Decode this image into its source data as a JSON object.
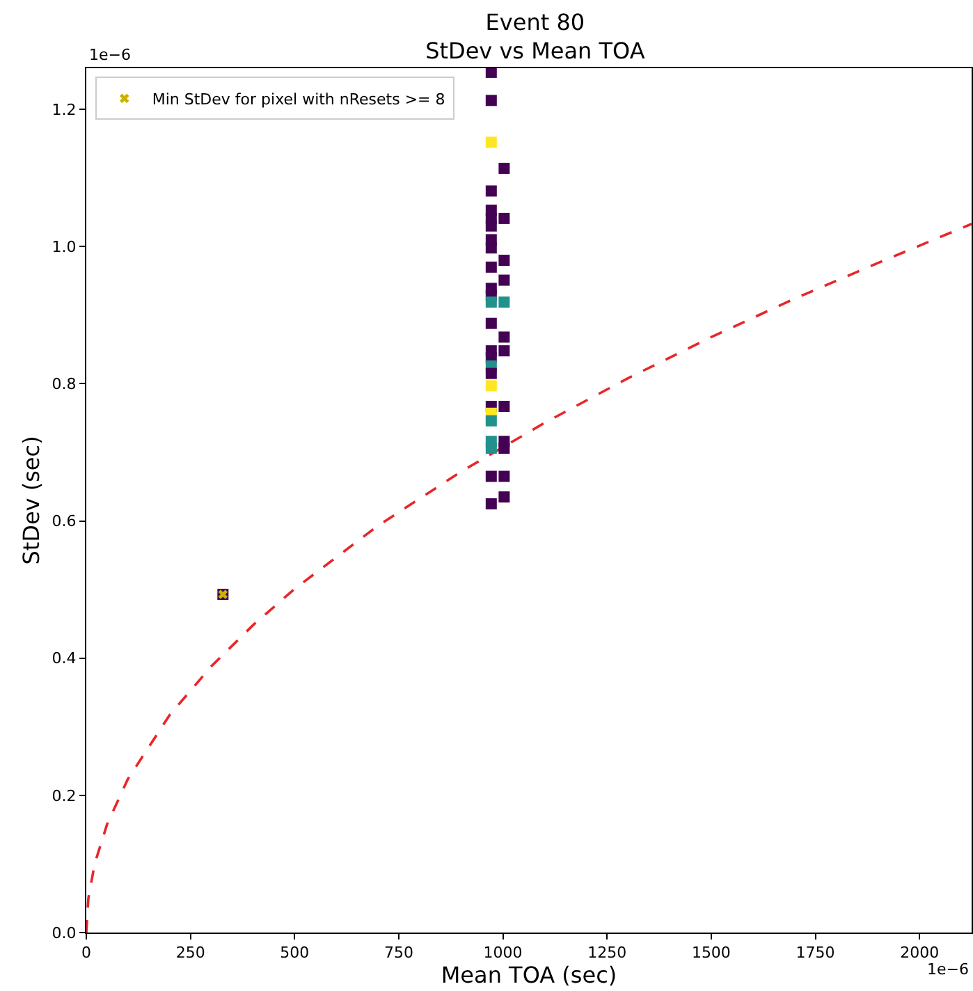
{
  "chart_data": {
    "type": "scatter",
    "title": "Event 80",
    "subtitle": "StDev vs Mean TOA",
    "xlabel": "Mean TOA (sec)",
    "ylabel": "StDev (sec)",
    "annotations": [
      "1e−6",
      "1e−6"
    ],
    "xlim": [
      0,
      2125
    ],
    "xticks": [
      0,
      250,
      500,
      750,
      1000,
      1250,
      1500,
      1750,
      2000
    ],
    "ylim": [
      0,
      1.26
    ],
    "yticks": [
      {
        "value": 0,
        "label": "0.0"
      },
      {
        "value": 0.2,
        "label": "0.2"
      },
      {
        "value": 0.4,
        "label": "0.4"
      },
      {
        "value": 0.6,
        "label": "0.6"
      },
      {
        "value": 0.8,
        "label": "0.8"
      },
      {
        "value": 1,
        "label": "1.0"
      },
      {
        "value": 1.2,
        "label": "1.2"
      }
    ],
    "grid": false,
    "legend": "top left",
    "series": [
      {
        "type": "line",
        "color": "#e8262a",
        "line_style": "dashed",
        "marker": "none",
        "x": [
          0,
          5,
          20,
          50,
          100,
          200,
          300,
          400,
          500,
          700,
          900,
          1100,
          1300,
          1500,
          1700,
          1900,
          2125
        ],
        "values": [
          0,
          0.05,
          0.1,
          0.158,
          0.224,
          0.317,
          0.388,
          0.448,
          0.501,
          0.593,
          0.672,
          0.743,
          0.808,
          0.868,
          0.924,
          0.976,
          1.033
        ]
      },
      {
        "marker": "square",
        "x": [
          328,
          972,
          972,
          972,
          1003,
          972,
          972,
          972,
          1003,
          972,
          972,
          972,
          1003,
          972,
          1003,
          972,
          972,
          972,
          1003,
          972,
          1003,
          972,
          1003,
          972,
          972,
          972,
          972,
          972,
          1003,
          972,
          972,
          972,
          1003,
          972,
          1003,
          972,
          1003,
          1003,
          972
        ],
        "values": [
          0.493,
          1.254,
          1.213,
          1.152,
          1.114,
          1.081,
          1.053,
          1.041,
          1.041,
          1.03,
          1.01,
          0.998,
          0.98,
          0.97,
          0.951,
          0.939,
          0.929,
          0.919,
          0.919,
          0.888,
          0.868,
          0.848,
          0.848,
          0.838,
          0.826,
          0.815,
          0.797,
          0.767,
          0.767,
          0.757,
          0.746,
          0.716,
          0.716,
          0.706,
          0.706,
          0.665,
          0.665,
          0.635,
          0.625
        ],
        "colors": [
          "#440154",
          "#440154",
          "#440154",
          "#fde725",
          "#440154",
          "#440154",
          "#440154",
          "#440154",
          "#440154",
          "#440154",
          "#440154",
          "#440154",
          "#440154",
          "#440154",
          "#440154",
          "#440154",
          "#440154",
          "#21918c",
          "#21918c",
          "#440154",
          "#440154",
          "#440154",
          "#440154",
          "#440154",
          "#21918c",
          "#440154",
          "#fde725",
          "#440154",
          "#440154",
          "#fde725",
          "#21918c",
          "#21918c",
          "#440154",
          "#21918c",
          "#440154",
          "#440154",
          "#440154",
          "#440154",
          "#440154"
        ]
      },
      {
        "name": "Min StDev for pixel with nResets >= 8",
        "color": "#c8b400",
        "marker": "cross",
        "x": [
          328
        ],
        "values": [
          0.493
        ]
      }
    ]
  }
}
